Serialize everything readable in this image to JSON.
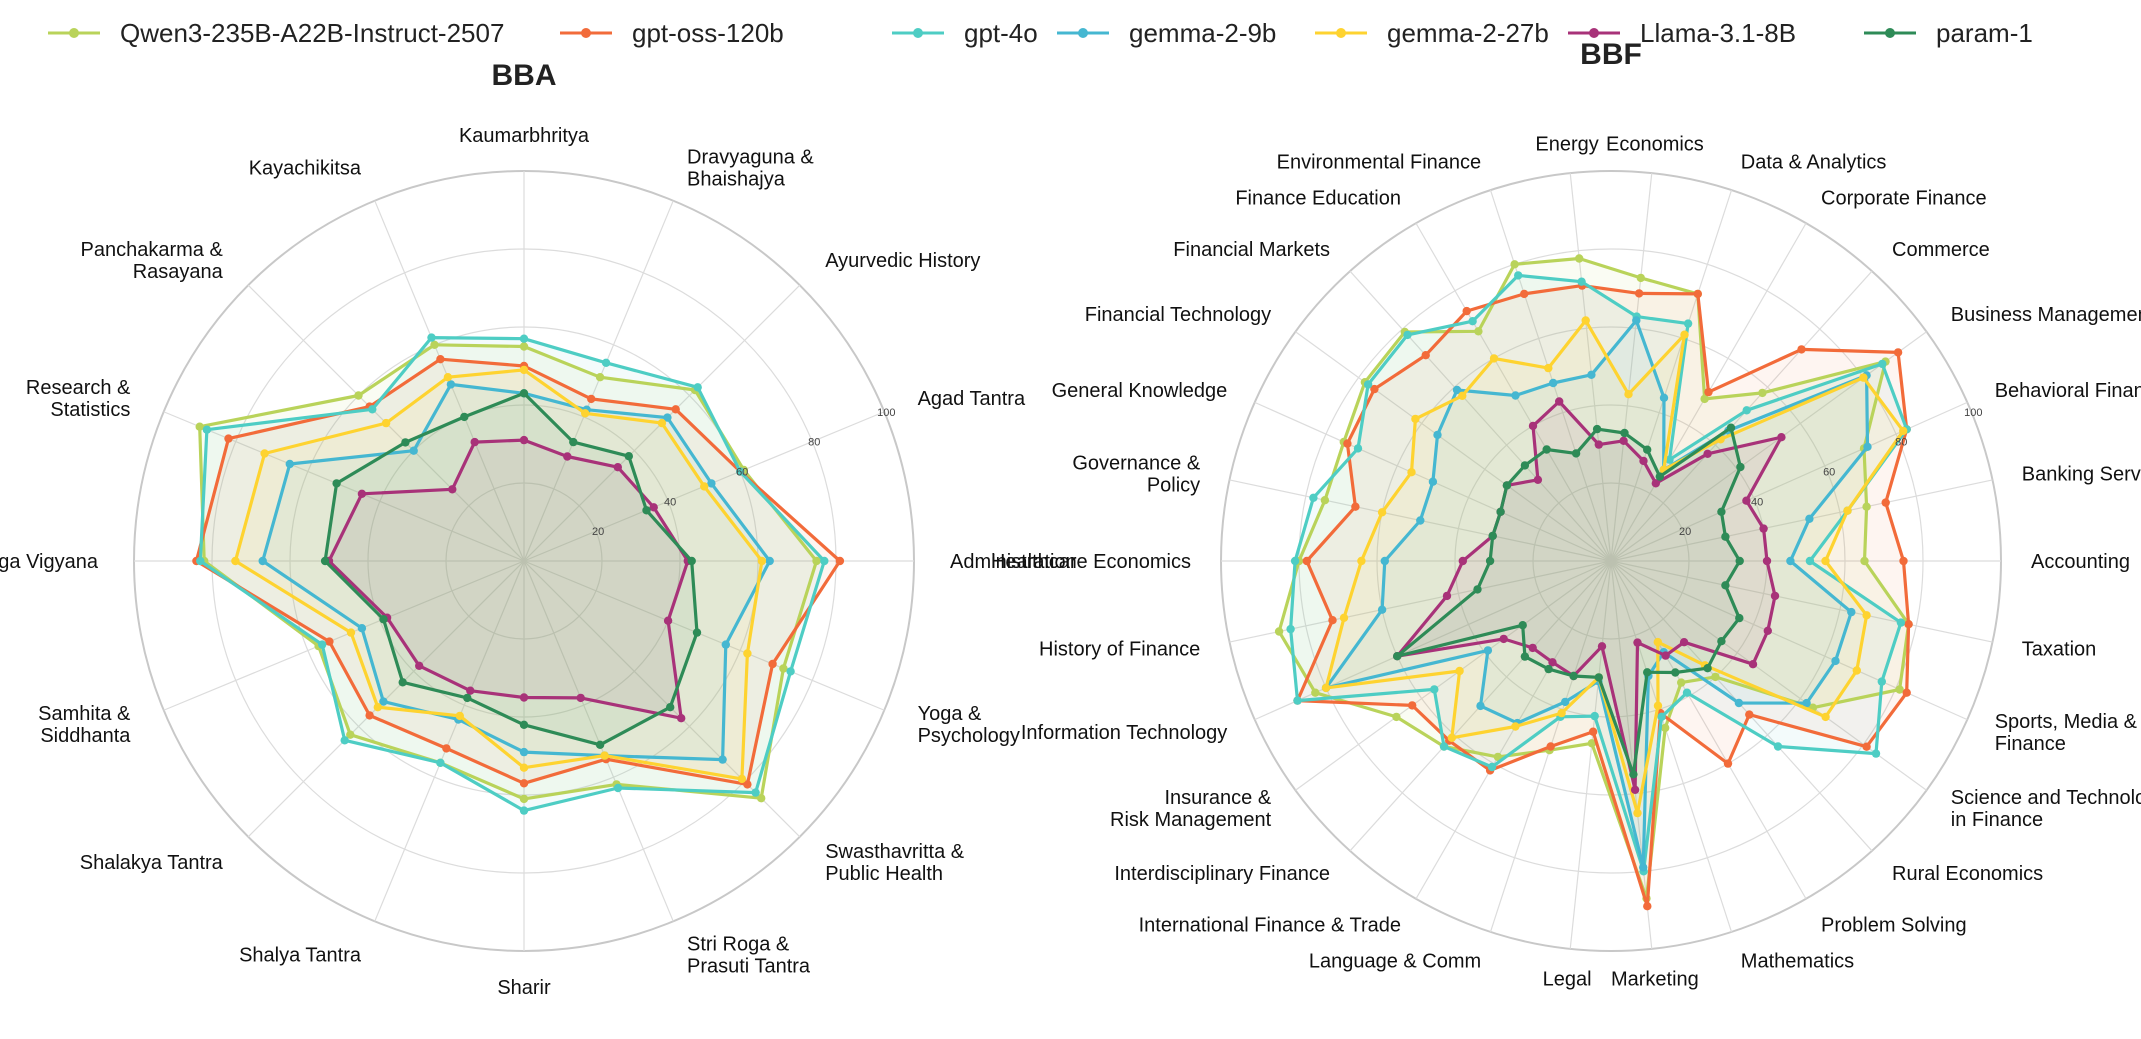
{
  "figure_title": "",
  "legend": {
    "placement": "top",
    "items": [
      {
        "name": "Qwen3-235B-A22B-Instruct-2507",
        "color": "#b9d35a"
      },
      {
        "name": "gpt-oss-120b",
        "color": "#f26b3a"
      },
      {
        "name": "gpt-4o",
        "color": "#4ecdc4"
      },
      {
        "name": "gemma-2-9b",
        "color": "#45b7d1"
      },
      {
        "name": "gemma-2-27b",
        "color": "#fed330"
      },
      {
        "name": "Llama-3.1-8B",
        "color": "#a83279"
      },
      {
        "name": "param-1",
        "color": "#2e8b57"
      }
    ]
  },
  "chart_data": [
    {
      "type": "radar",
      "title": "BBA",
      "rlim": [
        0,
        100
      ],
      "rticks": [
        20,
        40,
        60,
        80,
        100
      ],
      "rtick_labels": [
        "20",
        "40",
        "60",
        "80",
        "100"
      ],
      "start_angle_deg": 0,
      "direction": "counterclockwise",
      "categories": [
        [
          "Administration"
        ],
        [
          "Agad Tantra"
        ],
        [
          "Ayurvedic History"
        ],
        [
          "Dravyaguna &",
          "Bhaishajya"
        ],
        [
          "Kaumarbhritya"
        ],
        [
          "Kayachikitsa"
        ],
        [
          "Panchakarma &",
          "Rasayana"
        ],
        [
          "Research &",
          "Statistics"
        ],
        [
          "Roga Vigyana"
        ],
        [
          "Samhita &",
          "Siddhanta"
        ],
        [
          "Shalakya Tantra"
        ],
        [
          "Shalya Tantra"
        ],
        [
          "Sharir"
        ],
        [
          "Stri Roga &",
          "Prasuti Tantra"
        ],
        [
          "Swasthavritta &",
          "Public Health"
        ],
        [
          "Yoga &",
          "Psychology"
        ]
      ],
      "series": [
        {
          "name": "Qwen3-235B-A22B-Instruct-2507",
          "values": [
            75,
            61,
            62,
            51,
            55,
            60,
            60,
            90,
            82,
            57,
            63,
            56,
            61,
            62,
            86,
            72
          ]
        },
        {
          "name": "gpt-oss-120b",
          "values": [
            81,
            60,
            55,
            45,
            50,
            56,
            56,
            82,
            84,
            54,
            56,
            52,
            57,
            55,
            81,
            69
          ]
        },
        {
          "name": "gpt-4o",
          "values": [
            77,
            60,
            63,
            55,
            57,
            62,
            55,
            88,
            83,
            56,
            65,
            56,
            64,
            63,
            84,
            74
          ]
        },
        {
          "name": "gemma-2-9b",
          "values": [
            63,
            52,
            52,
            42,
            43,
            49,
            40,
            65,
            67,
            45,
            51,
            44,
            49,
            54,
            72,
            56
          ]
        },
        {
          "name": "gemma-2-27b",
          "values": [
            61,
            50,
            50,
            41,
            49,
            51,
            50,
            72,
            74,
            48,
            53,
            43,
            53,
            54,
            79,
            62
          ]
        },
        {
          "name": "Llama-3.1-8B",
          "values": [
            42,
            36,
            34,
            29,
            31,
            33,
            26,
            45,
            50,
            38,
            38,
            36,
            35,
            38,
            57,
            40
          ]
        },
        {
          "name": "param-1",
          "values": [
            43,
            34,
            38,
            33,
            43,
            40,
            43,
            52,
            51,
            39,
            44,
            38,
            42,
            51,
            53,
            48
          ]
        }
      ]
    },
    {
      "type": "radar",
      "title": "BBF",
      "rlim": [
        0,
        100
      ],
      "rticks": [
        20,
        40,
        60,
        80,
        100
      ],
      "rtick_labels": [
        "20",
        "40",
        "60",
        "80",
        "100"
      ],
      "start_angle_deg": 0,
      "direction": "counterclockwise",
      "categories": [
        [
          "Accounting"
        ],
        [
          "Banking Services"
        ],
        [
          "Behavioral Finance"
        ],
        [
          "Business Management"
        ],
        [
          "Commerce"
        ],
        [
          "Corporate Finance"
        ],
        [
          "Data & Analytics"
        ],
        [
          "Economics"
        ],
        [
          "Energy"
        ],
        [
          "Environmental Finance"
        ],
        [
          "Finance Education"
        ],
        [
          "Financial Markets"
        ],
        [
          "Financial Technology"
        ],
        [
          "General Knowledge"
        ],
        [
          "Governance &",
          "Policy"
        ],
        [
          "Healthcare Economics"
        ],
        [
          "History of Finance"
        ],
        [
          "Information Technology"
        ],
        [
          "Insurance &",
          "Risk Management"
        ],
        [
          "Interdisciplinary Finance"
        ],
        [
          "International Finance & Trade"
        ],
        [
          "Language & Comm"
        ],
        [
          "Legal"
        ],
        [
          "Marketing"
        ],
        [
          "Mathematics"
        ],
        [
          "Problem Solving"
        ],
        [
          "Rural Economics"
        ],
        [
          "Science and Technology",
          "in Finance"
        ],
        [
          "Sports, Media &",
          "Finance"
        ],
        [
          "Taxation"
        ]
      ],
      "series": [
        {
          "name": "Qwen3-235B-A22B-Instruct-2507",
          "values": [
            65,
            67,
            71,
            87,
            58,
            48,
            72,
            73,
            78,
            80,
            68,
            79,
            78,
            75,
            75,
            80,
            87,
            83,
            68,
            64,
            58,
            51,
            47,
            87,
            45,
            36,
            40,
            64,
            81,
            78
          ]
        },
        {
          "name": "gpt-oss-120b",
          "values": [
            75,
            72,
            83,
            91,
            73,
            50,
            72,
            69,
            71,
            72,
            74,
            71,
            75,
            74,
            67,
            78,
            73,
            88,
            63,
            62,
            62,
            50,
            44,
            89,
            41,
            60,
            53,
            81,
            83,
            78
          ]
        },
        {
          "name": "gpt-4o",
          "values": [
            51,
            62,
            83,
            86,
            52,
            30,
            64,
            63,
            72,
            77,
            71,
            78,
            77,
            71,
            78,
            81,
            84,
            88,
            56,
            64,
            61,
            42,
            40,
            80,
            42,
            39,
            64,
            84,
            76,
            76
          ]
        },
        {
          "name": "gemma-2-9b",
          "values": [
            46,
            52,
            72,
            81,
            45,
            27,
            44,
            62,
            48,
            48,
            49,
            59,
            55,
            50,
            50,
            58,
            60,
            80,
            39,
            50,
            48,
            38,
            31,
            79,
            31,
            27,
            49,
            62,
            63,
            63
          ]
        },
        {
          "name": "gemma-2-27b",
          "values": [
            55,
            62,
            82,
            80,
            42,
            27,
            61,
            43,
            62,
            52,
            60,
            57,
            62,
            56,
            60,
            64,
            70,
            80,
            48,
            61,
            49,
            41,
            30,
            65,
            39,
            24,
            36,
            68,
            69,
            67
          ]
        },
        {
          "name": "Llama-3.1-8B",
          "values": [
            40,
            40,
            38,
            54,
            37,
            23,
            27,
            31,
            30,
            43,
            40,
            28,
            33,
            31,
            31,
            38,
            43,
            60,
            34,
            30,
            30,
            31,
            22,
            59,
            22,
            28,
            28,
            45,
            44,
            43
          ]
        },
        {
          "name": "param-1",
          "values": [
            33,
            30,
            31,
            41,
            46,
            25,
            30,
            33,
            34,
            29,
            33,
            33,
            33,
            31,
            31,
            31,
            35,
            60,
            28,
            33,
            32,
            31,
            30,
            55,
            30,
            33,
            37,
            35,
            36,
            30
          ]
        }
      ]
    }
  ]
}
